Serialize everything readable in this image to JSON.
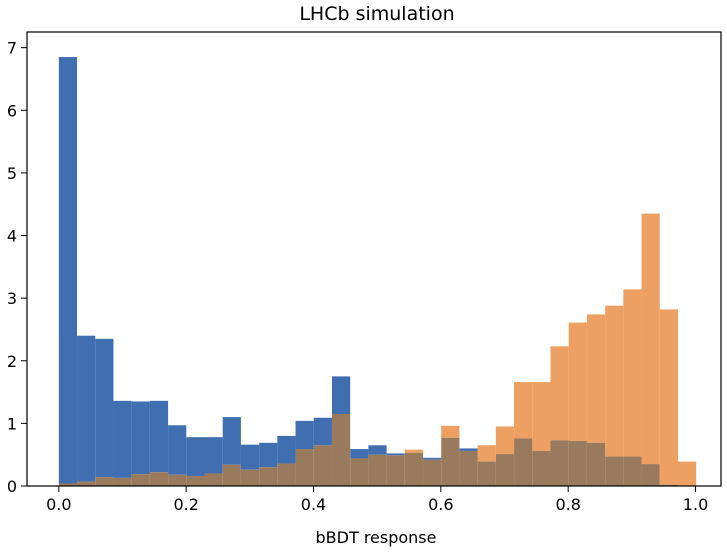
{
  "chart_data": {
    "type": "bar",
    "title": "LHCb simulation",
    "xlabel": "bBDT response",
    "ylabel": "",
    "xlim": [
      -0.05,
      1.04
    ],
    "ylim": [
      0,
      7.25
    ],
    "x_ticks": [
      0.0,
      0.2,
      0.4,
      0.6,
      0.8,
      1.0
    ],
    "x_tick_labels": [
      "0.0",
      "0.2",
      "0.4",
      "0.6",
      "0.8",
      "1.0"
    ],
    "y_ticks": [
      0,
      1,
      2,
      3,
      4,
      5,
      6,
      7
    ],
    "y_tick_labels": [
      "0",
      "1",
      "2",
      "3",
      "4",
      "5",
      "6",
      "7"
    ],
    "grid": false,
    "histtype": "overlapping histograms",
    "colors": {
      "series_1": "#3f6fb0",
      "series_2": "#eda061",
      "overlap": "#9a7a5d"
    },
    "bin_width": 0.0286,
    "bin_edges_start": 0.0,
    "series": [
      {
        "values": [
          6.85,
          2.4,
          2.35,
          1.36,
          1.35,
          1.36,
          0.97,
          0.78,
          0.78,
          1.1,
          0.66,
          0.69,
          0.8,
          1.04,
          1.09,
          1.75,
          0.59,
          0.65,
          0.52,
          0.53,
          0.45,
          0.77,
          0.6,
          0.39,
          0.51,
          0.76,
          0.56,
          0.73,
          0.72,
          0.69,
          0.47,
          0.47,
          0.35,
          0.02
        ]
      },
      {
        "values": [
          0.04,
          0.07,
          0.14,
          0.13,
          0.19,
          0.22,
          0.18,
          0.16,
          0.2,
          0.34,
          0.26,
          0.3,
          0.36,
          0.59,
          0.65,
          1.15,
          0.44,
          0.5,
          0.49,
          0.58,
          0.42,
          0.96,
          0.56,
          0.65,
          0.95,
          1.66,
          1.66,
          2.23,
          2.61,
          2.74,
          2.88,
          3.14,
          4.35,
          2.82,
          0.39
        ]
      }
    ]
  }
}
